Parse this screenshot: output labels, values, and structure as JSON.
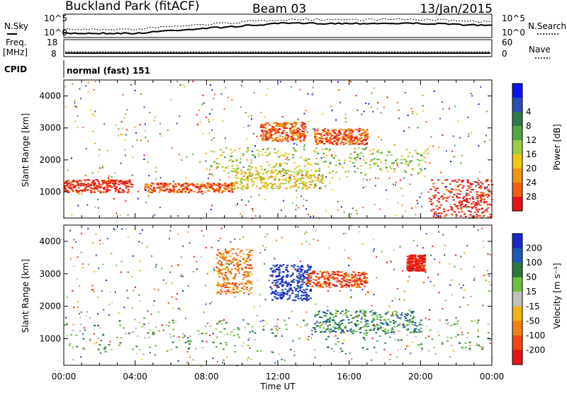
{
  "header": {
    "title": "Buckland Park (fitACF)",
    "beam": "Beam 03",
    "date": "13/Jan/2015"
  },
  "strips": {
    "nsky_label": "N.Sky",
    "nsearch_label": "N.Search",
    "nsky_ticks": [
      "10^5",
      "10^0"
    ],
    "nsearch_ticks": [
      "10^5",
      "10^0"
    ],
    "freq_label": "Freq.",
    "freq_unit": "[MHz]",
    "freq_ticks": [
      "18",
      "8"
    ],
    "nave_label": "Nave",
    "nave_ticks": [
      "60",
      "0"
    ],
    "cpid_label": "CPID",
    "cpid_text": "normal (fast) 151"
  },
  "chart_data": [
    {
      "type": "heatmap",
      "name": "power",
      "ylabel": "Slant Range [km]",
      "xlabel": "",
      "xticks": [
        "00:00",
        "04:00",
        "08:00",
        "12:00",
        "16:00",
        "20:00",
        "00:00"
      ],
      "xlim_hours": [
        0,
        24
      ],
      "yticks": [
        1000,
        2000,
        3000,
        4000
      ],
      "ylim": [
        180,
        4500
      ],
      "colorbar_label": "Power [dB]",
      "colorbar_ticks": [
        4,
        8,
        12,
        16,
        20,
        24,
        28
      ],
      "colorbar_colors": [
        "#0a14f0",
        "#2a50b0",
        "#2e7a48",
        "#52a83c",
        "#9acc46",
        "#f0c814",
        "#f09614",
        "#f0600f",
        "#e61414"
      ],
      "regions_hours_km": [
        {
          "t0": 0.0,
          "t1": 3.8,
          "r0": 1000,
          "r1": 1400,
          "level": 28
        },
        {
          "t0": 4.5,
          "t1": 9.5,
          "r0": 1000,
          "r1": 1300,
          "level": 26
        },
        {
          "t0": 9.5,
          "t1": 14.5,
          "r0": 1100,
          "r1": 1700,
          "level": 22
        },
        {
          "t0": 11.0,
          "t1": 13.5,
          "r0": 2600,
          "r1": 3200,
          "level": 26
        },
        {
          "t0": 14.0,
          "t1": 17.0,
          "r0": 2500,
          "r1": 3000,
          "level": 24
        },
        {
          "t0": 20.5,
          "t1": 24.0,
          "r0": 200,
          "r1": 1400,
          "level": 28
        },
        {
          "t0": 8.0,
          "t1": 20.5,
          "r0": 1600,
          "r1": 2400,
          "level": 16
        }
      ]
    },
    {
      "type": "heatmap",
      "name": "velocity",
      "ylabel": "Slant Range [km]",
      "xlabel": "Time UT",
      "xticks": [
        "00:00",
        "04:00",
        "08:00",
        "12:00",
        "16:00",
        "20:00",
        "00:00"
      ],
      "xlim_hours": [
        0,
        24
      ],
      "yticks": [
        1000,
        2000,
        3000,
        4000
      ],
      "ylim": [
        180,
        4500
      ],
      "colorbar_label": "Velocity [m s⁻¹]",
      "colorbar_ticks": [
        200,
        100,
        50,
        15,
        -15,
        -50,
        -100,
        -200
      ],
      "colorbar_colors": [
        "#1a28c8",
        "#1e5ab4",
        "#287a3c",
        "#6cc03c",
        "#c0c0bc",
        "#f0b414",
        "#f08214",
        "#f04614",
        "#e61414"
      ],
      "regions_hours_km": [
        {
          "t0": 0.0,
          "t1": 24.0,
          "r0": 600,
          "r1": 1600,
          "level": 0
        },
        {
          "t0": 8.5,
          "t1": 10.5,
          "r0": 2400,
          "r1": 3800,
          "level": -40
        },
        {
          "t0": 11.5,
          "t1": 13.8,
          "r0": 2200,
          "r1": 3300,
          "level": 150
        },
        {
          "t0": 13.5,
          "t1": 17.0,
          "r0": 2600,
          "r1": 3100,
          "level": -120
        },
        {
          "t0": 14.0,
          "t1": 20.0,
          "r0": 1200,
          "r1": 1900,
          "level": 40
        },
        {
          "t0": 19.2,
          "t1": 20.2,
          "r0": 3100,
          "r1": 3600,
          "level": -200
        }
      ]
    }
  ]
}
